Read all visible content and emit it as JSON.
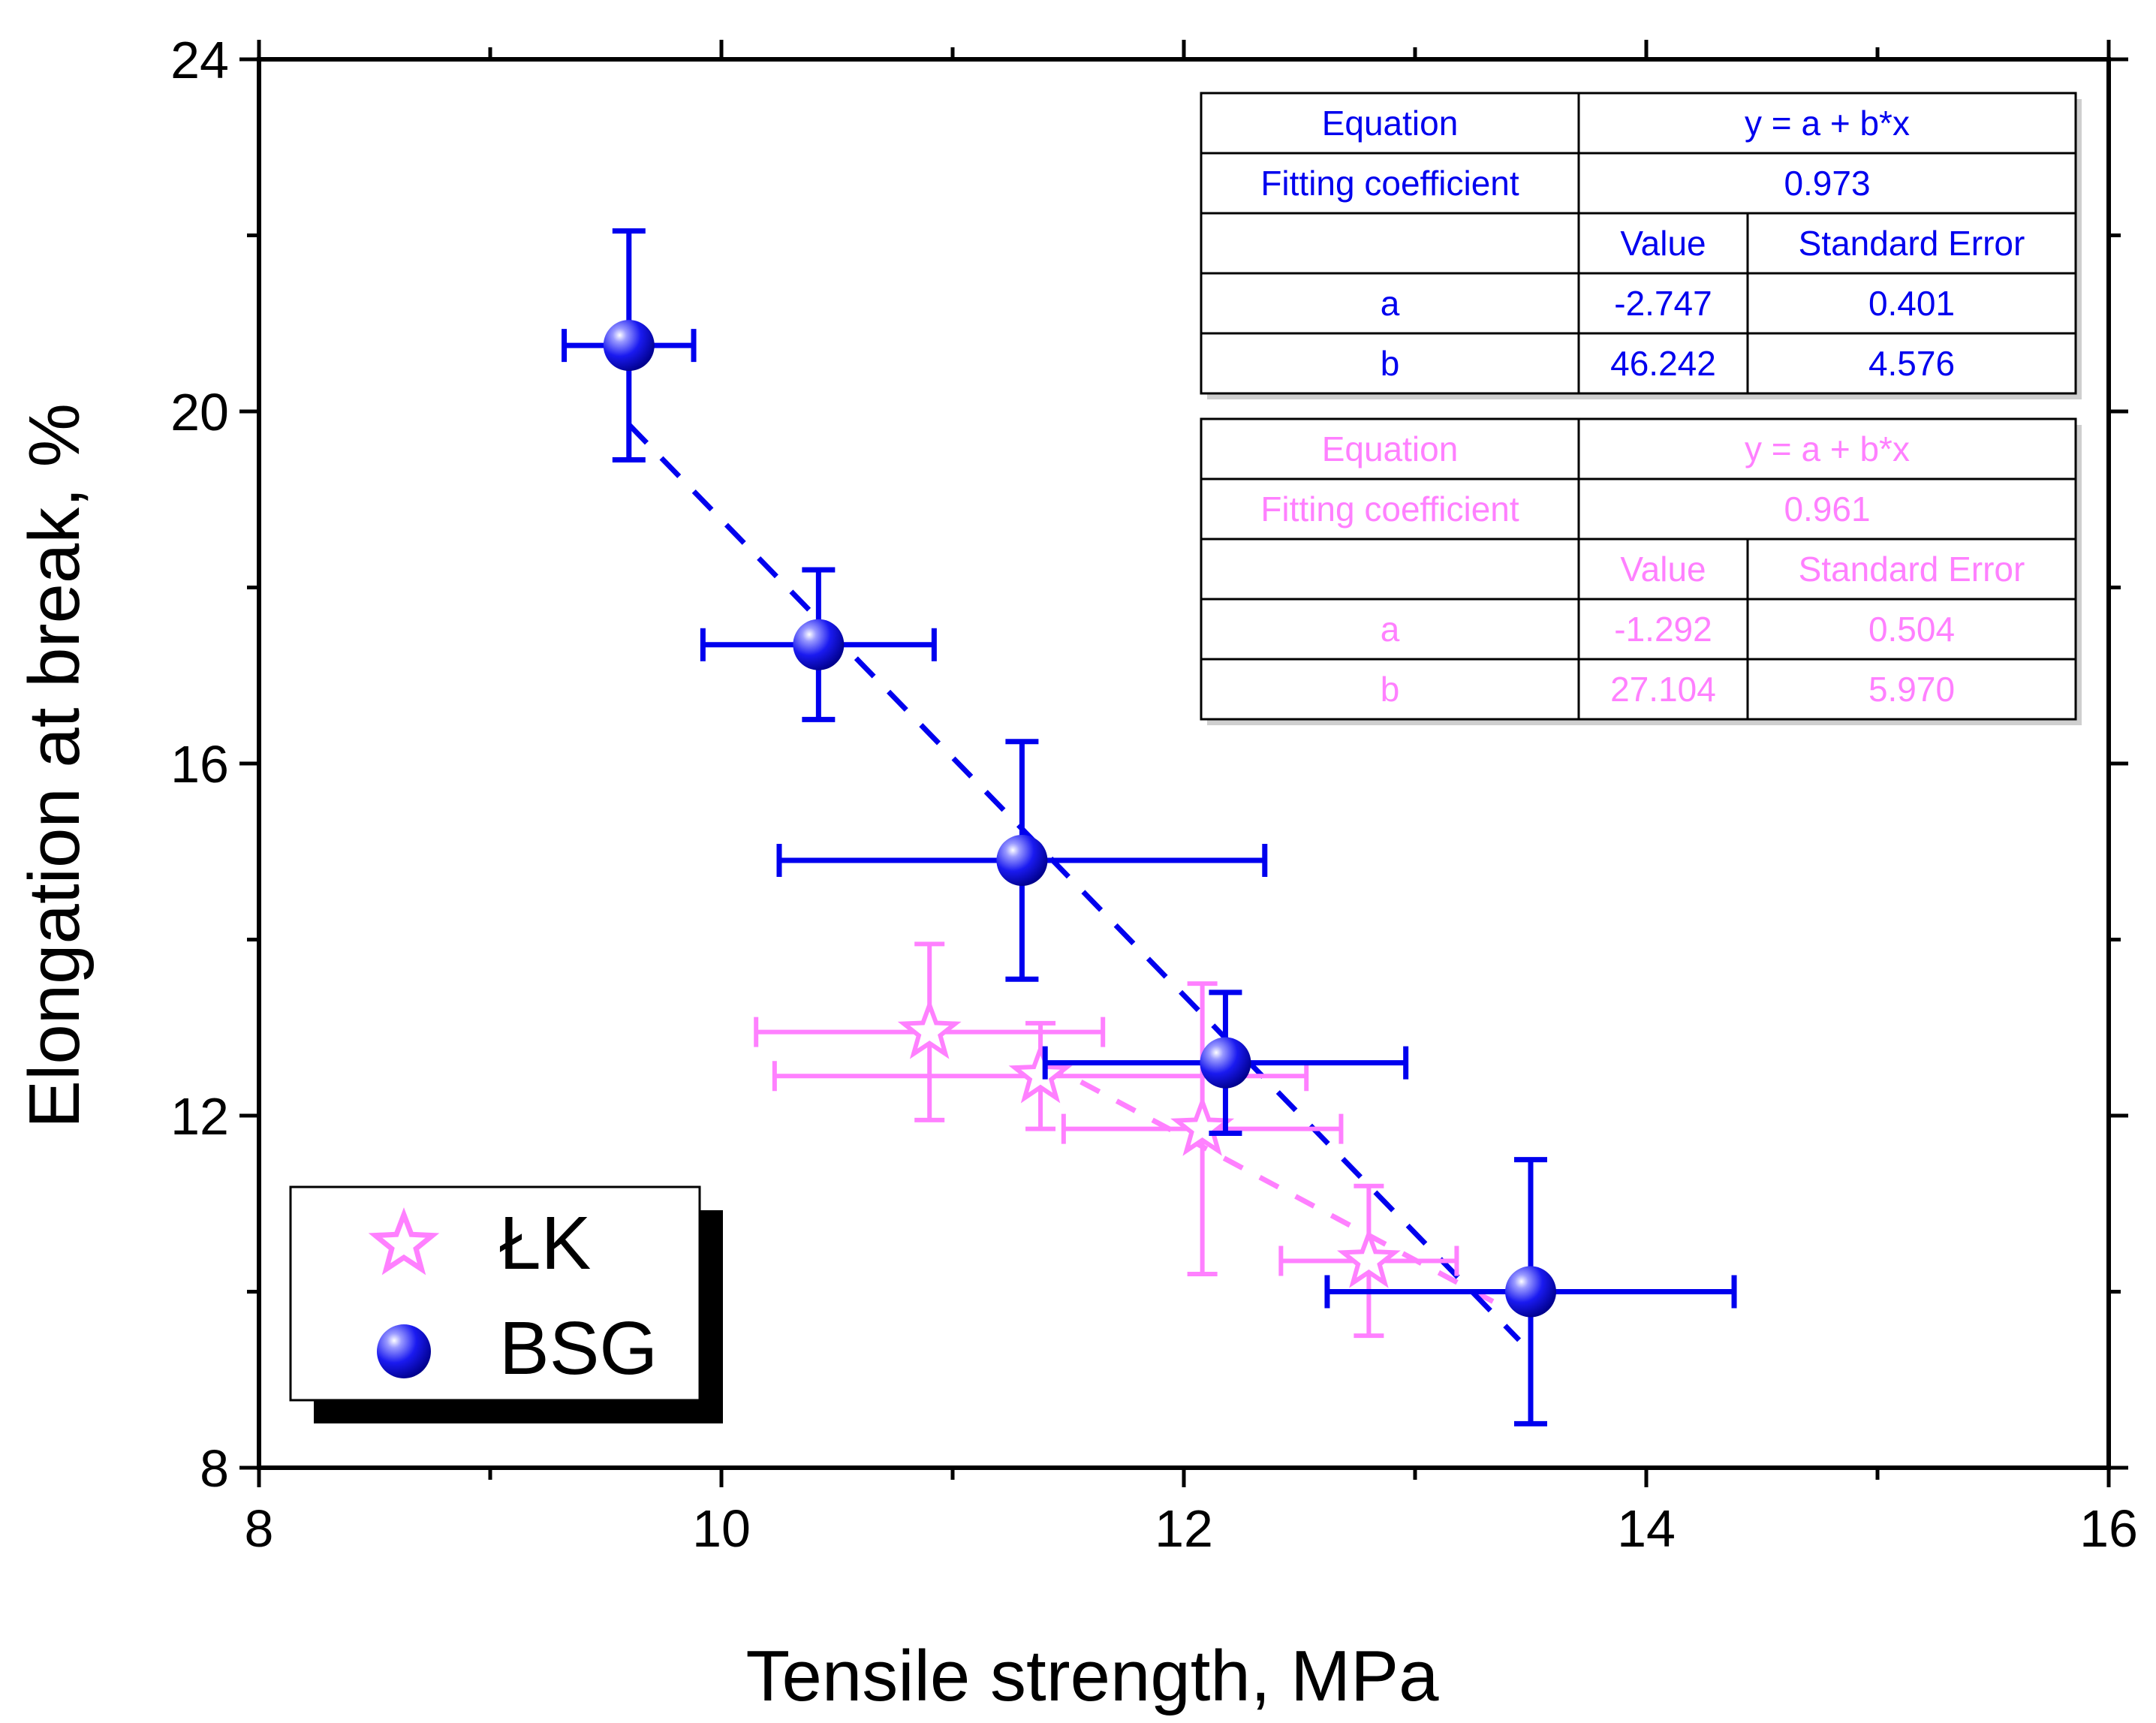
{
  "colors": {
    "lk": "#FF80FF",
    "bsg": "#0000EE",
    "axis": "#000000"
  },
  "chart_data": {
    "type": "scatter",
    "xlabel": "Tensile strength, MPa",
    "ylabel": "Elongation at break, %",
    "xlim": [
      8,
      16
    ],
    "ylim": [
      8,
      24
    ],
    "x_ticks": [
      "8",
      "10",
      "12",
      "14",
      "16"
    ],
    "y_ticks": [
      "8",
      "12",
      "16",
      "20",
      "24"
    ],
    "legend": {
      "position": "bottom-left",
      "entries": [
        {
          "label": "ŁK",
          "marker": "star-icon"
        },
        {
          "label": "BSG",
          "marker": "sphere-icon"
        }
      ]
    },
    "series": [
      {
        "name": "ŁK",
        "marker": "open-star",
        "points": [
          {
            "x": 10.9,
            "y": 12.95,
            "xerr": 0.75,
            "yerr": 1.0
          },
          {
            "x": 11.38,
            "y": 12.45,
            "xerr": 1.15,
            "yerr": 0.6
          },
          {
            "x": 12.08,
            "y": 11.85,
            "xerr": 0.6,
            "yerr": 1.65
          },
          {
            "x": 12.8,
            "y": 10.35,
            "xerr": 0.38,
            "yerr": 0.85
          }
        ],
        "fit": {
          "x": [
            11.4,
            13.4
          ],
          "y": [
            12.6,
            9.8
          ]
        }
      },
      {
        "name": "BSG",
        "marker": "filled-sphere",
        "points": [
          {
            "x": 9.6,
            "y": 20.75,
            "xerr": 0.28,
            "yerr": 1.3
          },
          {
            "x": 10.42,
            "y": 17.35,
            "xerr": 0.5,
            "yerr": 0.85
          },
          {
            "x": 11.3,
            "y": 14.9,
            "xerr": 1.05,
            "yerr": 1.35
          },
          {
            "x": 12.18,
            "y": 12.6,
            "xerr": 0.78,
            "yerr": 0.8
          },
          {
            "x": 13.5,
            "y": 10.0,
            "xerr": 0.88,
            "yerr": 1.5
          }
        ],
        "fit": {
          "x": [
            9.6,
            13.45
          ],
          "y": [
            19.85,
            9.45
          ]
        }
      }
    ],
    "fit_tables": [
      {
        "series": "BSG",
        "equation_label": "Equation",
        "equation": "y = a + b*x",
        "coef_label": "Fitting coefficient",
        "coef": "0.973",
        "col_value": "Value",
        "col_error": "Standard Error",
        "rows": [
          {
            "param": "a",
            "value": "-2.747",
            "error": "0.401"
          },
          {
            "param": "b",
            "value": "46.242",
            "error": "4.576"
          }
        ]
      },
      {
        "series": "ŁK",
        "equation_label": "Equation",
        "equation": "y = a + b*x",
        "coef_label": "Fitting coefficient",
        "coef": "0.961",
        "col_value": "Value",
        "col_error": "Standard Error",
        "rows": [
          {
            "param": "a",
            "value": "-1.292",
            "error": "0.504"
          },
          {
            "param": "b",
            "value": "27.104",
            "error": "5.970"
          }
        ]
      }
    ]
  }
}
